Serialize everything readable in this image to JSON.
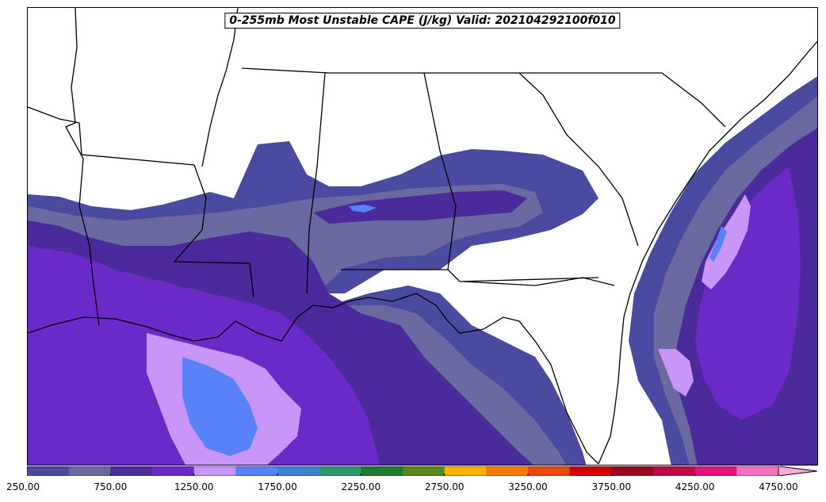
{
  "title": "0-255mb Most Unstable CAPE (J/kg) Valid: 202104292100f010",
  "colorbar": {
    "levels": [
      250,
      500,
      750,
      1000,
      1250,
      1500,
      1750,
      2000,
      2250,
      2500,
      2750,
      3000,
      3250,
      3500,
      3750,
      4000,
      4250,
      4500,
      4750
    ],
    "colors": [
      "#4a4aa0",
      "#6a6aa0",
      "#4b2a9c",
      "#6a2ac8",
      "#c896f8",
      "#5a82f8",
      "#3a82d2",
      "#2f9a6e",
      "#1e7a32",
      "#5a8a1e",
      "#f8b400",
      "#f87a00",
      "#e84a00",
      "#d20000",
      "#9a0a1e",
      "#be0a46",
      "#e6147a",
      "#f86ec2"
    ],
    "extend_color": "#f8aad8",
    "tick_labels": [
      "250.00",
      "750.00",
      "1250.00",
      "1750.00",
      "2250.00",
      "2750.00",
      "3250.00",
      "3750.00",
      "4250.00",
      "4750.00"
    ]
  },
  "field_colors": {
    "lvl250": "#4a4aa0",
    "lvl500": "#6a6aa0",
    "lvl750": "#4b2a9c",
    "lvl1000": "#6a2ac8",
    "lvl1250": "#c896f8",
    "lvl1500": "#5a82f8"
  }
}
